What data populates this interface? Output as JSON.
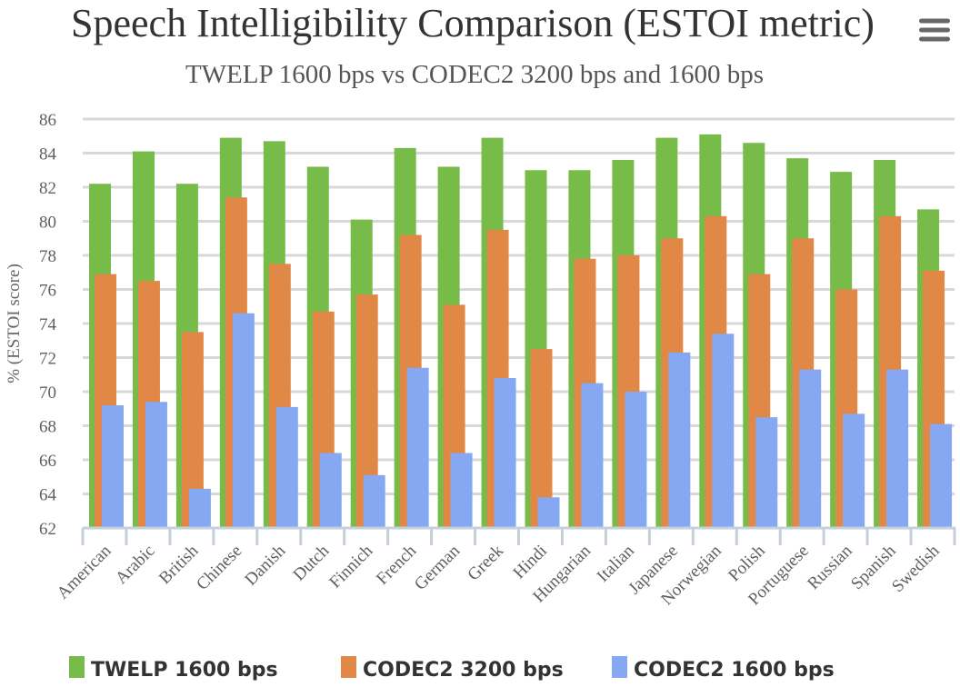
{
  "chart_data": {
    "type": "bar",
    "title": "Speech Intelligibility Comparison (ESTOI metric)",
    "subtitle": "TWELP 1600 bps vs CODEC2 3200 bps and 1600 bps",
    "xlabel": "",
    "ylabel": "% (ESTOI score)",
    "ylim": [
      62,
      86
    ],
    "yticks": [
      62,
      64,
      66,
      68,
      70,
      72,
      74,
      76,
      78,
      80,
      82,
      84,
      86
    ],
    "grid": true,
    "legend_position": "bottom",
    "categories": [
      "American",
      "Arabic",
      "British",
      "Chinese",
      "Danish",
      "Dutch",
      "Finnich",
      "French",
      "German",
      "Greek",
      "Hindi",
      "Hungarian",
      "Italian",
      "Japanese",
      "Norwegian",
      "Polish",
      "Portuguese",
      "Russian",
      "Spanish",
      "Swedish"
    ],
    "series": [
      {
        "name": "TWELP 1600 bps",
        "color": "#77bb48",
        "values": [
          82.2,
          84.1,
          82.2,
          84.9,
          84.7,
          83.2,
          80.1,
          84.3,
          83.2,
          84.9,
          83.0,
          83.0,
          83.6,
          84.9,
          85.1,
          84.6,
          83.7,
          82.9,
          83.6,
          80.7
        ]
      },
      {
        "name": "CODEC2 3200 bps",
        "color": "#e18847",
        "values": [
          76.9,
          76.5,
          73.5,
          81.4,
          77.5,
          74.7,
          75.7,
          79.2,
          75.1,
          79.5,
          72.5,
          77.8,
          78.0,
          79.0,
          80.3,
          76.9,
          79.0,
          76.0,
          80.3,
          77.1
        ]
      },
      {
        "name": "CODEC2 1600 bps",
        "color": "#86a8f2",
        "values": [
          69.2,
          69.4,
          64.3,
          74.6,
          69.1,
          66.4,
          65.1,
          71.4,
          66.4,
          70.8,
          63.8,
          70.5,
          70.0,
          72.3,
          73.4,
          68.5,
          71.3,
          68.7,
          71.3,
          68.1
        ]
      }
    ]
  },
  "menu": {
    "icon": "hamburger-menu-icon"
  }
}
